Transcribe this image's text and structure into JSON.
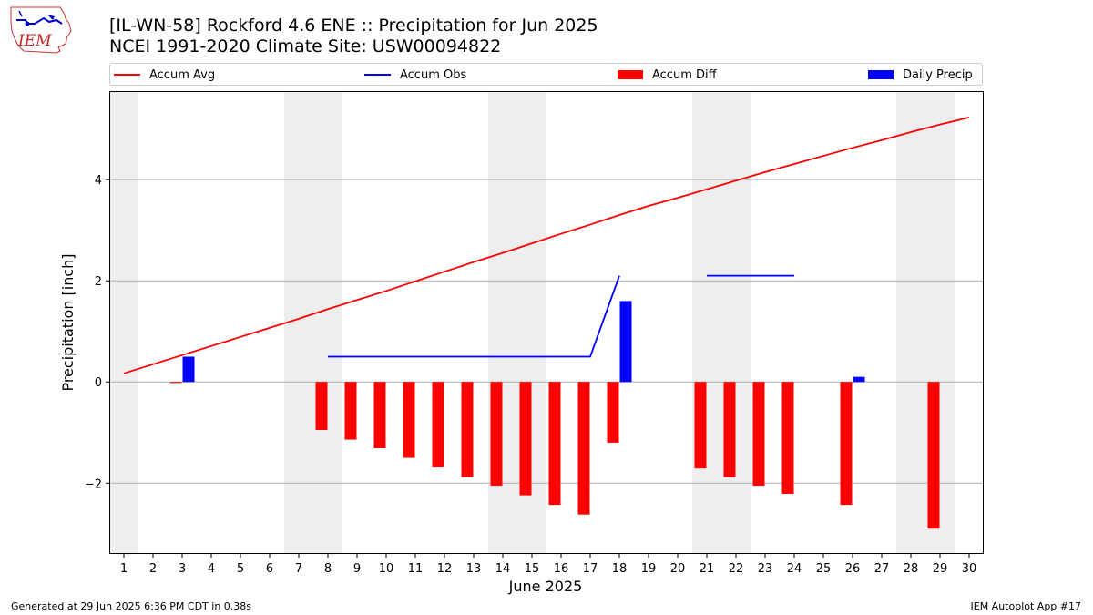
{
  "header": {
    "title": "[IL-WN-58] Rockford 4.6 ENE :: Precipitation for Jun 2025",
    "subtitle": "NCEI 1991-2020 Climate Site: USW00094822",
    "logo_text": "IEM"
  },
  "legend": {
    "items": [
      {
        "label": "Accum Avg",
        "color": "#ff0000",
        "kind": "line"
      },
      {
        "label": "Accum Obs",
        "color": "#0000ff",
        "kind": "line"
      },
      {
        "label": "Accum Diff",
        "color": "#ff0000",
        "kind": "bar"
      },
      {
        "label": "Daily Precip",
        "color": "#0000ff",
        "kind": "bar"
      }
    ]
  },
  "footer": {
    "left": "Generated at 29 Jun 2025 6:36 PM CDT in 0.38s",
    "right": "IEM Autoplot App #17"
  },
  "chart_data": {
    "type": "bar",
    "title": "[IL-WN-58] Rockford 4.6 ENE :: Precipitation for Jun 2025",
    "xlabel": "June 2025",
    "ylabel": "Precipitation [inch]",
    "xlim": [
      0.5,
      30.5
    ],
    "ylim": [
      -3.4,
      5.75
    ],
    "x_ticks": [
      1,
      2,
      3,
      4,
      5,
      6,
      7,
      8,
      9,
      10,
      11,
      12,
      13,
      14,
      15,
      16,
      17,
      18,
      19,
      20,
      21,
      22,
      23,
      24,
      25,
      26,
      27,
      28,
      29,
      30
    ],
    "y_ticks": [
      -2,
      0,
      2,
      4
    ],
    "y_tick_labels": [
      "−2",
      "0",
      "2",
      "4"
    ],
    "grid": "horizontal",
    "legend_placement": "top",
    "weekend_shading": [
      [
        0.5,
        1.5
      ],
      [
        6.5,
        8.5
      ],
      [
        13.5,
        15.5
      ],
      [
        20.5,
        22.5
      ],
      [
        27.5,
        29.5
      ]
    ],
    "series": [
      {
        "name": "Accum Avg",
        "kind": "line",
        "color": "#ff0000",
        "x": [
          1,
          2,
          3,
          4,
          5,
          6,
          7,
          8,
          9,
          10,
          11,
          12,
          13,
          14,
          15,
          16,
          17,
          18,
          19,
          20,
          21,
          22,
          23,
          24,
          25,
          26,
          27,
          28,
          29,
          30
        ],
        "values": [
          0.17,
          0.35,
          0.53,
          0.71,
          0.89,
          1.07,
          1.25,
          1.44,
          1.62,
          1.8,
          1.99,
          2.18,
          2.37,
          2.55,
          2.74,
          2.93,
          3.11,
          3.3,
          3.48,
          3.64,
          3.81,
          3.98,
          4.15,
          4.31,
          4.47,
          4.63,
          4.78,
          4.94,
          5.09,
          5.23
        ]
      },
      {
        "name": "Accum Obs",
        "kind": "line",
        "color": "#0000ff",
        "segments": [
          {
            "x": [
              8,
              9,
              10,
              11,
              12,
              13,
              14,
              15,
              16,
              17,
              18
            ],
            "values": [
              0.5,
              0.5,
              0.5,
              0.5,
              0.5,
              0.5,
              0.5,
              0.5,
              0.5,
              0.5,
              2.1
            ]
          },
          {
            "x": [
              21,
              22,
              23,
              24
            ],
            "values": [
              2.1,
              2.1,
              2.1,
              2.1
            ]
          }
        ]
      },
      {
        "name": "Accum Diff",
        "kind": "bar",
        "color": "#ff0000",
        "x": [
          3,
          8,
          9,
          10,
          11,
          12,
          13,
          14,
          15,
          16,
          17,
          18,
          21,
          22,
          23,
          24,
          26,
          29
        ],
        "values": [
          -0.02,
          -0.95,
          -1.14,
          -1.31,
          -1.5,
          -1.69,
          -1.88,
          -2.05,
          -2.24,
          -2.43,
          -2.62,
          -1.2,
          -1.71,
          -1.88,
          -2.05,
          -2.21,
          -2.43,
          -2.9
        ]
      },
      {
        "name": "Daily Precip",
        "kind": "bar",
        "color": "#0000ff",
        "x": [
          3,
          18,
          26
        ],
        "values": [
          0.5,
          1.6,
          0.1
        ]
      }
    ]
  }
}
